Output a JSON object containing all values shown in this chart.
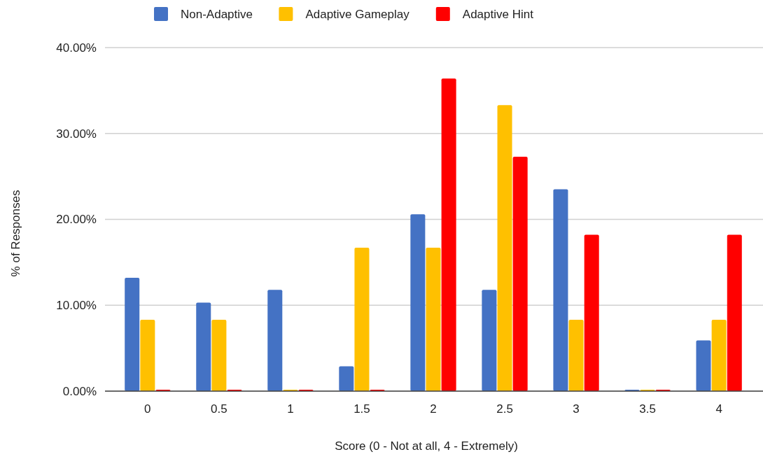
{
  "chart_data": {
    "type": "bar",
    "xlabel": "Score (0 - Not at all, 4 - Extremely)",
    "ylabel": "% of Responses",
    "categories": [
      "0",
      "0.5",
      "1",
      "1.5",
      "2",
      "2.5",
      "3",
      "3.5",
      "4"
    ],
    "series": [
      {
        "name": "Non-Adaptive",
        "color": "#4472c4",
        "values": [
          13.2,
          10.3,
          11.8,
          2.9,
          20.6,
          11.8,
          23.5,
          0,
          5.9
        ]
      },
      {
        "name": "Adaptive Gameplay",
        "color": "#ffc000",
        "values": [
          8.3,
          8.3,
          0,
          16.7,
          16.7,
          33.3,
          8.3,
          0,
          8.3
        ]
      },
      {
        "name": "Adaptive Hint",
        "color": "#ff0000",
        "values": [
          0,
          0,
          0,
          0,
          36.4,
          27.3,
          18.2,
          0,
          18.2
        ]
      }
    ],
    "ylim": [
      0,
      40
    ],
    "yticks": [
      {
        "value": 0,
        "label": "0.00%"
      },
      {
        "value": 10,
        "label": "10.00%"
      },
      {
        "value": 20,
        "label": "20.00%"
      },
      {
        "value": 30,
        "label": "30.00%"
      },
      {
        "value": 40,
        "label": "40.00%"
      }
    ],
    "grid": "y",
    "legend": "top"
  }
}
